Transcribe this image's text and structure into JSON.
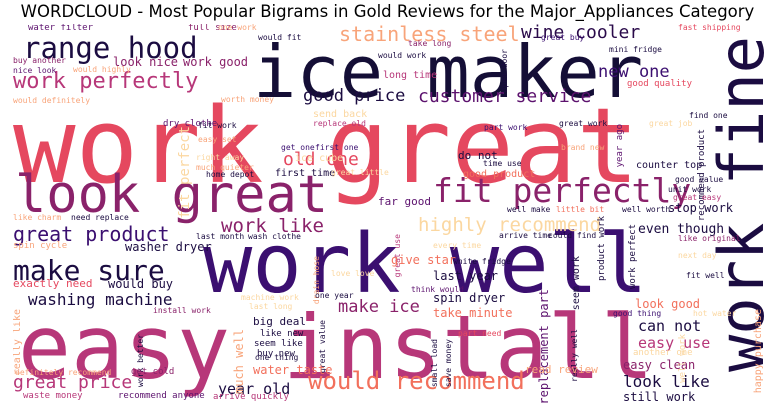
{
  "title": "WORDCLOUD - Most Popular Bigrams in Gold Reviews for the Major_Appliances Category",
  "colors": {
    "dark": "#1b0c41",
    "purple": "#5c126e",
    "magenta": "#8a226a",
    "rose": "#b73779",
    "red": "#e5485f",
    "coral": "#f2705c",
    "peach": "#f8a47a",
    "cream": "#fbd7a0"
  },
  "words": {
    "w_work_great": "work great",
    "w_work_well": "work well",
    "w_easy_install": "easy install",
    "w_ice_maker": "ice maker",
    "w_work_fine": "work fine",
    "w_look_great": "look great",
    "w_fit_perfectly": "fit perfectly",
    "w_range_hood": "range hood",
    "w_work_perfectly": "work perfectly",
    "w_stainless_steel": "stainless steel",
    "w_wine_cooler": "wine cooler",
    "w_customer_service": "customer service",
    "w_good_price": "good price",
    "w_new_one": "new one",
    "w_make_sure": "make sure",
    "w_great_product": "great product",
    "w_work_like": "work like",
    "w_highly_recommend": "highly recommend",
    "w_washing_machine": "washing machine",
    "w_would_recommend": "would recommend",
    "w_great_price": "great price",
    "w_make_ice": "make ice",
    "w_old_one": "old one",
    "w_year_old": "year old",
    "w_look_like": "look like",
    "w_can_not": "can not",
    "w_easy_use": "easy use",
    "w_water_filter": "water filter",
    "w_full_size": "full size",
    "w_one_work": "one work",
    "w_would_fit": "would fit",
    "w_buy_another": "buy another",
    "w_would_highly": "would highly",
    "w_look_nice": "look nice",
    "w_work_good": "work good",
    "w_nice_look": "nice look",
    "w_take_long": "take long",
    "w_great_buy": "great buy",
    "w_mini_fridge": "mini fridge",
    "w_fast_shipping": "fast shipping",
    "w_would_work": "would work",
    "w_long_time": "long time",
    "w_open_door": "open door",
    "w_good_quality": "good quality",
    "w_great_job": "great job",
    "w_would_definitely": "would definitely",
    "w_dry_clothe": "dry clothe",
    "w_worth_money": "worth money",
    "w_send_back": "send back",
    "w_replace_old": "replace old",
    "w_fit_work": "fit work",
    "w_part_work": "part work",
    "w_great_work": "great work",
    "w_find_one": "find one",
    "w_easy_set": "easy set",
    "w_right_away": "right away",
    "w_much_quieter": "much quieter",
    "w_get_one": "get one",
    "w_first_one": "first one",
    "w_ice_cube": "ice cube",
    "w_brand_new": "brand new",
    "w_time_use": "time use",
    "w_fit_perfect": "fit perfect",
    "w_home_depot": "home depot",
    "w_first_time": "first time",
    "w_great_little": "great little",
    "w_do_not": "do not",
    "w_good_product": "good product",
    "w_recommend_product": "recommend product",
    "w_counter_top": "counter top",
    "w_year_ago": "year ago",
    "w_good_value": "good value",
    "w_unit_work": "unit work",
    "w_great_easy": "great easy",
    "w_stop_work": "stop work",
    "w_like_charm": "like charm",
    "w_need_replace": "need replace",
    "w_far_good": "far good",
    "w_well_make": "well make",
    "w_little_bit": "little bit",
    "w_well_worth": "well worth",
    "w_spin_cycle": "spin cycle",
    "w_washer_dryer": "washer dryer",
    "w_last_month": "last month",
    "w_wash_clothe": "wash clothe",
    "w_great_use": "great use",
    "w_every_time": "every time",
    "w_arrive_time": "arrive time",
    "w_could_find": "could find",
    "w_even_though": "even though",
    "w_like_original": "like original",
    "w_work_perfect": "work perfect",
    "w_next_day": "next day",
    "w_exactly_need": "exactly need",
    "w_would_buy": "would buy",
    "w_drain_hose": "drain hose",
    "w_love_love": "love love",
    "w_give_star": "give star",
    "w_white_fridge": "white fridge",
    "w_last_year": "last year",
    "w_think_would": "think would",
    "w_seem_work": "seem work",
    "w_product_work": "product work",
    "w_fit_well": "fit well",
    "w_spin_dryer": "spin dryer",
    "w_replacement_part": "replacement part",
    "w_machine_work": "machine work",
    "w_last_long": "last long",
    "w_one_year": "one year",
    "w_install_work": "install work",
    "w_take_minute": "take minute",
    "w_look_good": "look good",
    "w_good_thing": "good thing",
    "w_hot_water": "hot water",
    "w_happy_purchase": "happy purchase",
    "w_really_like": "really like",
    "w_big_deal": "big deal",
    "w_like_new": "like new",
    "w_seem_like": "seem like",
    "w_buy_new": "buy new",
    "w_part_need": "part need",
    "w_really_well": "really well",
    "w_work_better": "work better",
    "w_great_value": "great value",
    "w_much_well": "much well",
    "w_one_thing": "one thing",
    "w_water_taste": "water taste",
    "w_small_load": "small load",
    "w_save_money": "save money",
    "w_read_review": "read review",
    "w_easy_clean": "easy clean",
    "w_another_one": "another one",
    "w_definitely_recommend": "definitely recommend",
    "w_get_cold": "get cold",
    "w_waste_money": "waste money",
    "w_recommend_anyone": "recommend anyone",
    "w_arrive_quickly": "arrive quickly",
    "w_still_work": "still work",
    "w_well_work": "well work"
  }
}
